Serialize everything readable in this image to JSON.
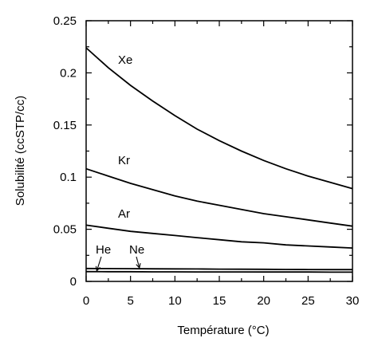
{
  "chart_data": {
    "type": "line",
    "title": "",
    "xlabel": "Température (°C)",
    "ylabel": "Solubilité (ccSTP/cc)",
    "xlim": [
      0,
      30
    ],
    "ylim": [
      0,
      0.25
    ],
    "xticks": [
      0,
      5,
      10,
      15,
      20,
      25,
      30
    ],
    "xtick_labels": [
      "0",
      "5",
      "10",
      "15",
      "20",
      "25",
      "30"
    ],
    "yticks": [
      0,
      0.05,
      0.1,
      0.15,
      0.2,
      0.25
    ],
    "ytick_labels": [
      "0",
      "0.05",
      "0.1",
      "0.15",
      "0.2",
      "0.25"
    ],
    "grid": false,
    "legend": "none",
    "x": [
      0,
      2.5,
      5,
      7.5,
      10,
      12.5,
      15,
      17.5,
      20,
      22.5,
      25,
      27.5,
      30
    ],
    "series": [
      {
        "name": "Xe",
        "values": [
          0.224,
          0.205,
          0.188,
          0.173,
          0.159,
          0.146,
          0.135,
          0.125,
          0.116,
          0.108,
          0.101,
          0.095,
          0.089
        ]
      },
      {
        "name": "Kr",
        "values": [
          0.108,
          0.101,
          0.094,
          0.088,
          0.082,
          0.077,
          0.073,
          0.069,
          0.065,
          0.062,
          0.059,
          0.056,
          0.053
        ]
      },
      {
        "name": "Ar",
        "values": [
          0.054,
          0.051,
          0.048,
          0.046,
          0.044,
          0.042,
          0.04,
          0.038,
          0.037,
          0.035,
          0.034,
          0.033,
          0.032
        ]
      },
      {
        "name": "Ne",
        "values": [
          0.0124,
          0.0123,
          0.0122,
          0.0121,
          0.012,
          0.0119,
          0.0118,
          0.0117,
          0.0116,
          0.0115,
          0.0114,
          0.0113,
          0.0113
        ]
      },
      {
        "name": "He",
        "values": [
          0.0094,
          0.0093,
          0.0093,
          0.0092,
          0.0092,
          0.0091,
          0.0091,
          0.0091,
          0.009,
          0.009,
          0.009,
          0.0089,
          0.0089
        ]
      }
    ]
  }
}
